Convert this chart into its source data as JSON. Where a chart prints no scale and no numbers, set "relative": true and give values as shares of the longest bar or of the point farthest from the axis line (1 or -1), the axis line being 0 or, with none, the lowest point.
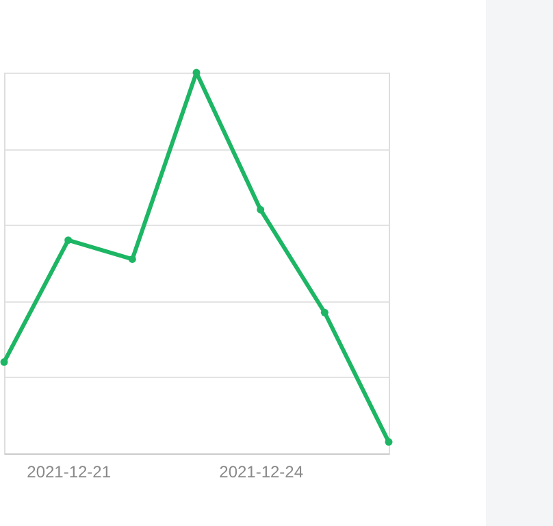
{
  "chart_data": {
    "type": "line",
    "relative": true,
    "categories": [
      null,
      "2021-12-21",
      null,
      null,
      "2021-12-24",
      null,
      null
    ],
    "series": [
      {
        "color": "#1db664",
        "values": [
          0.24,
          0.56,
          0.51,
          1,
          0.64,
          0.37,
          0.03
        ]
      }
    ],
    "grid": "y",
    "marker": "circle"
  }
}
